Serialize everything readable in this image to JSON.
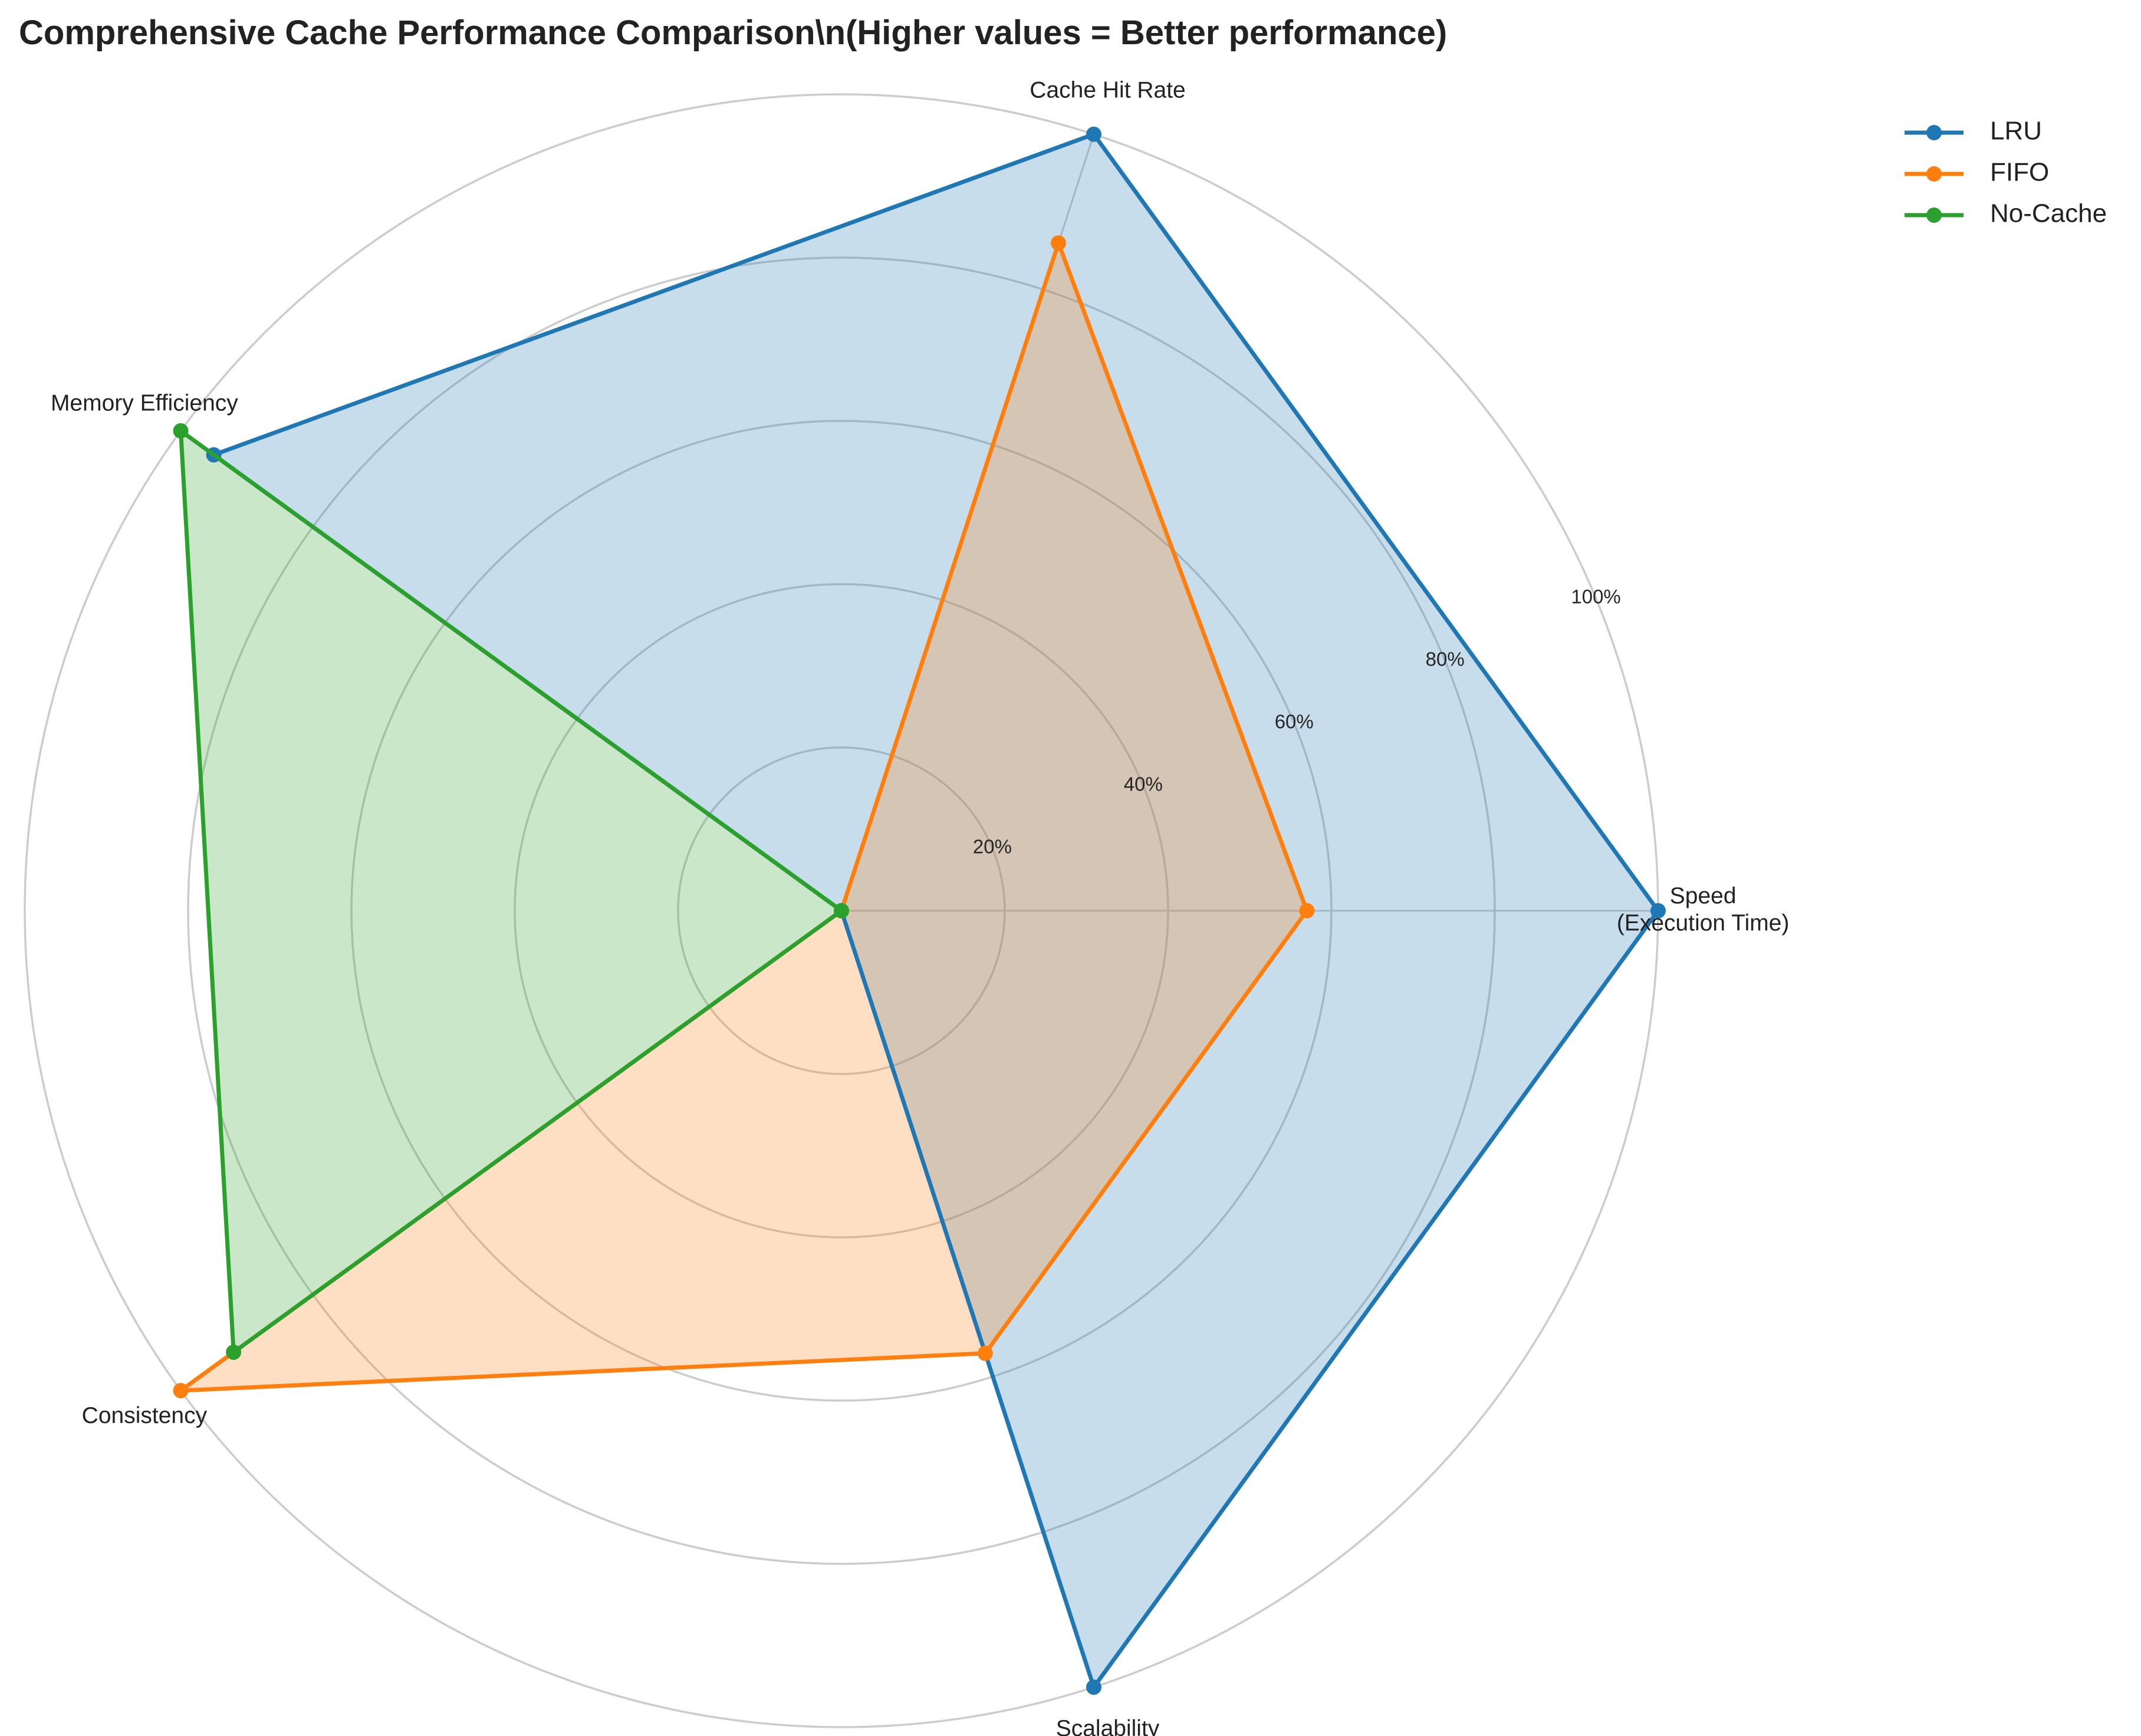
{
  "chart_data": {
    "type": "radar",
    "title": "Comprehensive Cache Performance Comparison\\n(Higher values = Better performance)",
    "axes": [
      "Speed\n(Execution Time)",
      "Cache Hit Rate",
      "Memory Efficiency",
      "Consistency",
      "Scalability"
    ],
    "rlim": [
      0,
      100
    ],
    "rticks": [
      20,
      40,
      60,
      80,
      100
    ],
    "rtick_labels": [
      "20%",
      "40%",
      "60%",
      "80%",
      "100%"
    ],
    "grid": true,
    "legend_placement": "top-right",
    "series": [
      {
        "name": "LRU",
        "color": "#1f77b4",
        "values": [
          100,
          100,
          95,
          0,
          100
        ]
      },
      {
        "name": "FIFO",
        "color": "#ff7f0e",
        "values": [
          57,
          86,
          0,
          100,
          57
        ]
      },
      {
        "name": "No-Cache",
        "color": "#2ca02c",
        "values": [
          0,
          0,
          100,
          92,
          0
        ]
      }
    ]
  }
}
